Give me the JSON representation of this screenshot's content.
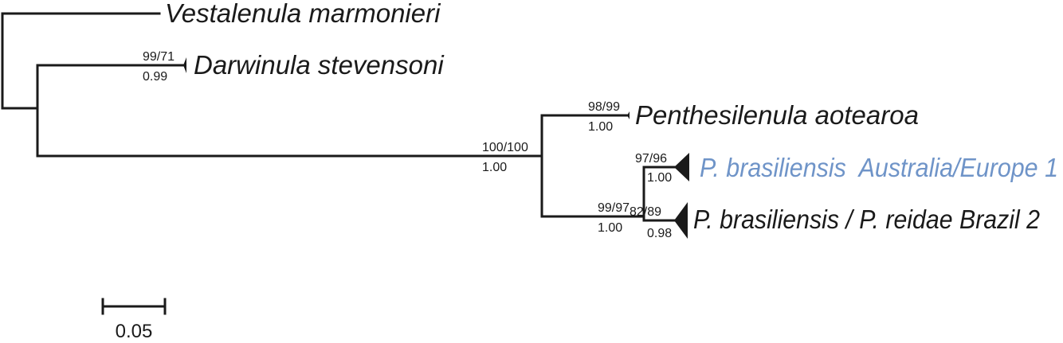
{
  "tree": {
    "taxa": {
      "vestalenula": "Vestalenula marmonieri",
      "darwinula": "Darwinula stevensoni",
      "penthesilenula": "Penthesilenula aotearoa",
      "pbras_aus": "P. brasiliensis  Australia/Europe 1",
      "pbras_brazil": "P. brasiliensis / P. reidae Brazil 2"
    },
    "support": {
      "darwinula_bs": "99/71",
      "darwinula_pp": "0.99",
      "penthesilenula_bs": "98/99",
      "penthesilenula_pp": "1.00",
      "ingroup_bs": "100/100",
      "ingroup_pp": "1.00",
      "pbras_node_bs": "99/97",
      "pbras_node_pp": "1.00",
      "aus_bs": "97/96",
      "aus_pp": "1.00",
      "brazil_bs": "82/89",
      "brazil_pp": "0.98"
    },
    "scale": {
      "label": "0.05"
    },
    "colors": {
      "text": "#1a1a1a",
      "highlight": "#6f94c8"
    }
  }
}
